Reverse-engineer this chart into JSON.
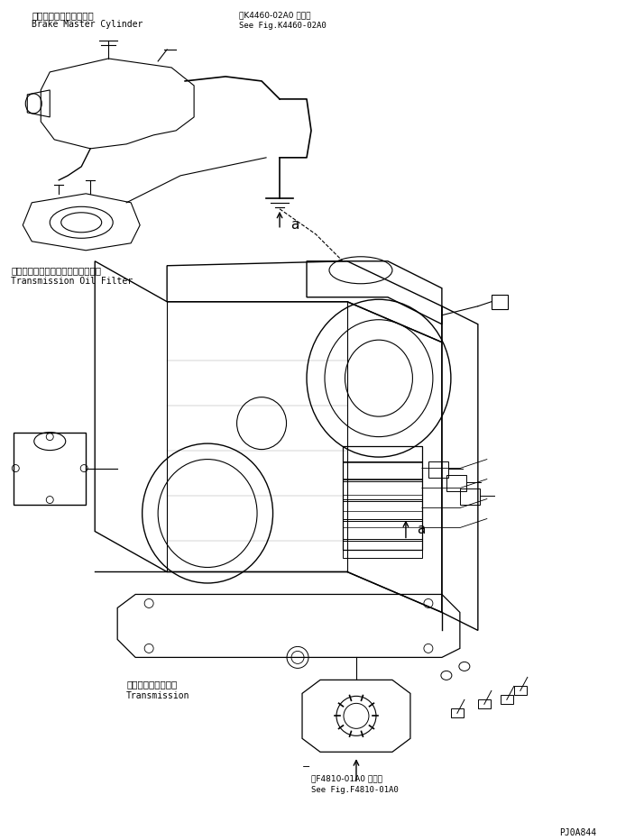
{
  "title": "",
  "background_color": "#ffffff",
  "fig_width": 7.14,
  "fig_height": 9.32,
  "dpi": 100,
  "labels": {
    "brake_jp": "ブレーキマスタシリンダ",
    "brake_en": "Brake Master Cylinder",
    "fig_ref1_jp": "第K4460-02A0 図参照",
    "fig_ref1_en": "See Fig.K4460-02A0",
    "oil_filter_jp": "トランスミッションオイルフィルタ",
    "oil_filter_en": "Transmission Oil Filter",
    "transmission_jp": "トランスミッション",
    "transmission_en": "Transmission",
    "fig_ref2_jp": "第F4810-01A0 図参照",
    "fig_ref2_en": "See Fig.F4810-01A0",
    "part_num": "PJ0A844",
    "label_a1": "a",
    "label_a2": "a"
  },
  "line_color": "#000000",
  "text_color": "#000000"
}
